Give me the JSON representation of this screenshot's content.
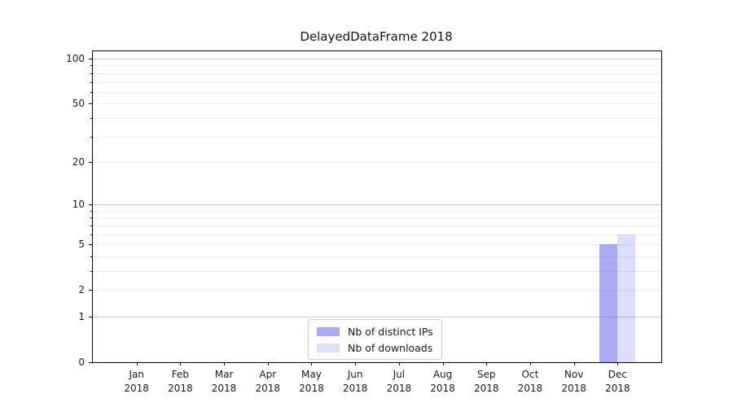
{
  "chart_data": {
    "type": "bar",
    "title": "DelayedDataFrame 2018",
    "categories": [
      "Jan",
      "Feb",
      "Mar",
      "Apr",
      "May",
      "Jun",
      "Jul",
      "Aug",
      "Sep",
      "Oct",
      "Nov",
      "Dec"
    ],
    "category_year": "2018",
    "series": [
      {
        "name": "Nb of distinct IPs",
        "color": "rgba(85,85,240,0.5)",
        "values": [
          0,
          0,
          0,
          0,
          0,
          0,
          0,
          0,
          0,
          0,
          0,
          5
        ]
      },
      {
        "name": "Nb of downloads",
        "color": "rgba(85,85,240,0.2)",
        "values": [
          0,
          0,
          0,
          0,
          0,
          0,
          0,
          0,
          0,
          0,
          0,
          6
        ]
      }
    ],
    "xlabel": "",
    "ylabel": "",
    "yscale": "log1p",
    "ylim": [
      0,
      112
    ],
    "yticks_labeled": [
      0,
      1,
      2,
      5,
      10,
      20,
      50,
      100
    ],
    "yticks_minor": [
      2,
      3,
      4,
      5,
      6,
      7,
      8,
      9,
      20,
      30,
      40,
      50,
      60,
      70,
      80,
      90
    ],
    "ygrid_major": [
      1,
      10,
      100
    ],
    "grid_color_major": "#c9c9c9",
    "grid_color_minor": "#ececec",
    "legend_position": "lower center",
    "grid": "on"
  }
}
